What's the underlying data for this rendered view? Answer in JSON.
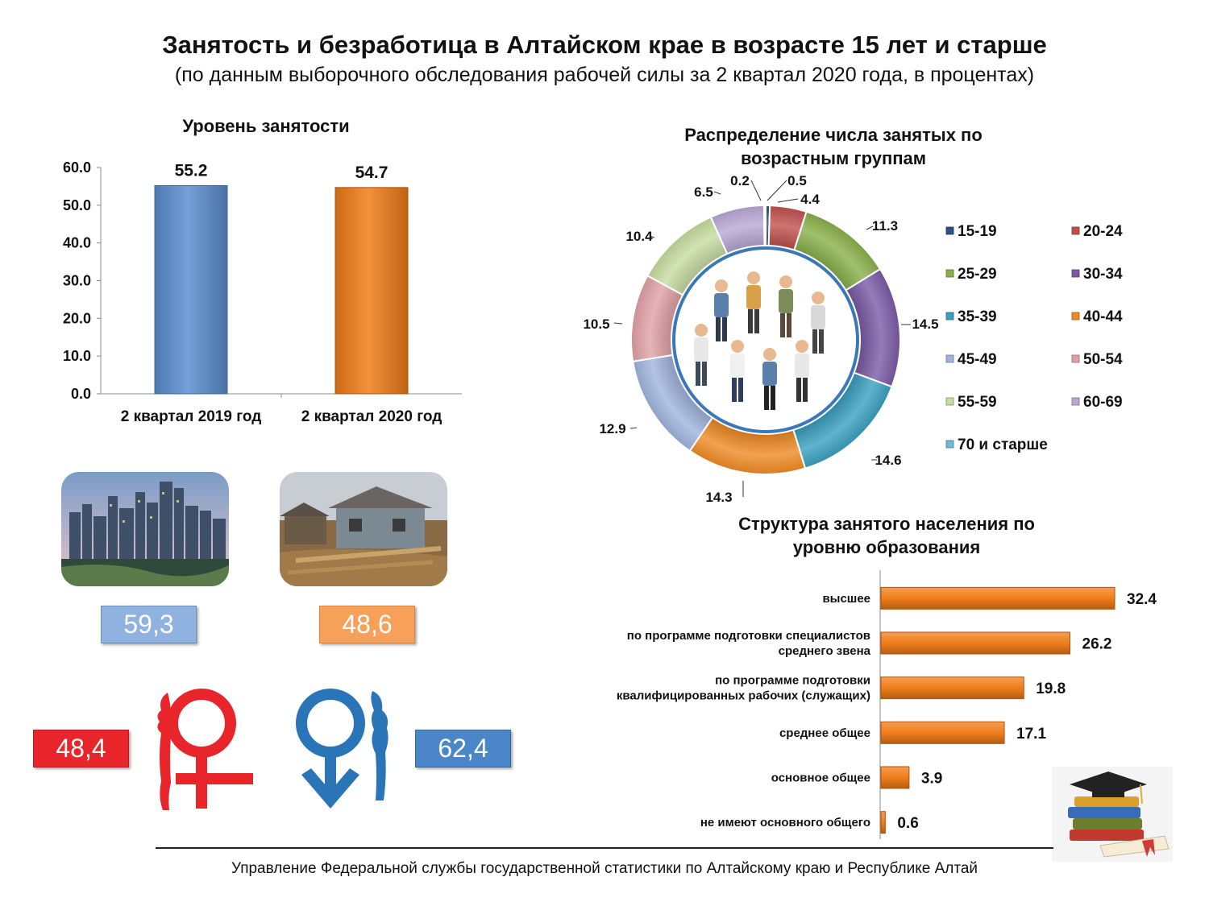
{
  "header": {
    "title": "Занятость и безработица в Алтайском крае в возрасте 15 лет и старше",
    "subtitle": "(по данным выборочного обследования рабочей силы за 2 квартал 2020 года, в процентах)"
  },
  "chart_data": [
    {
      "id": "employment-level",
      "type": "bar",
      "title": "Уровень занятости",
      "categories": [
        "2 квартал 2019 год",
        "2 квартал 2020 год"
      ],
      "values": [
        55.2,
        54.7
      ],
      "value_labels": [
        "55.2",
        "54.7"
      ],
      "colors": [
        "#5b8fd0",
        "#f07d1a"
      ],
      "ylim": [
        0,
        60
      ],
      "yticks": [
        "0.0",
        "10.0",
        "20.0",
        "30.0",
        "40.0",
        "50.0",
        "60.0"
      ],
      "xlabel": "",
      "ylabel": ""
    },
    {
      "id": "age-distribution",
      "type": "pie",
      "title": "Распределение числа занятых по возрастным группам",
      "labels": [
        "15-19",
        "20-24",
        "25-29",
        "30-34",
        "35-39",
        "40-44",
        "45-49",
        "50-54",
        "55-59",
        "60-69",
        "70 и старше"
      ],
      "values": [
        0.5,
        4.4,
        11.3,
        14.5,
        14.6,
        14.3,
        12.9,
        10.5,
        10.4,
        6.5,
        0.2
      ],
      "value_labels": [
        "0.5",
        "4.4",
        "11.3",
        "14.5",
        "14.6",
        "14.3",
        "12.9",
        "10.5",
        "10.4",
        "6.5",
        "0.2"
      ],
      "colors": [
        "#2e4f8c",
        "#c0504d",
        "#8ab04a",
        "#7a5aa6",
        "#3a9fbf",
        "#f08a24",
        "#9fb4dd",
        "#e0a0a6",
        "#c6dca0",
        "#b8a8d4",
        "#6fb8d8"
      ],
      "legend_position": "right"
    },
    {
      "id": "education-structure",
      "type": "bar",
      "orientation": "horizontal",
      "title": "Структура занятого населения по уровню образования",
      "categories": [
        [
          "высшее"
        ],
        [
          "по программе подготовки специалистов",
          "среднего звена"
        ],
        [
          "по программе подготовки",
          "квалифицированных рабочих (служащих)"
        ],
        [
          "среднее общее"
        ],
        [
          "основное общее"
        ],
        [
          "не имеют основного общего"
        ]
      ],
      "values": [
        32.4,
        26.2,
        19.8,
        17.1,
        3.9,
        0.6
      ],
      "value_labels": [
        "32.4",
        "26.2",
        "19.8",
        "17.1",
        "3.9",
        "0.6"
      ],
      "color": "#f07d1a",
      "xlim": [
        0,
        35
      ]
    }
  ],
  "locality": {
    "urban_value": "59,3",
    "rural_value": "48,6",
    "urban_color": "#8fb2e0",
    "rural_color": "#f7a05a"
  },
  "gender": {
    "female_value": "48,4",
    "male_value": "62,4",
    "female_color": "#e8252a",
    "male_color": "#4a86c8"
  },
  "footer": {
    "text": "Управление Федеральной службы государственной статистики по Алтайскому краю и Республике Алтай"
  }
}
